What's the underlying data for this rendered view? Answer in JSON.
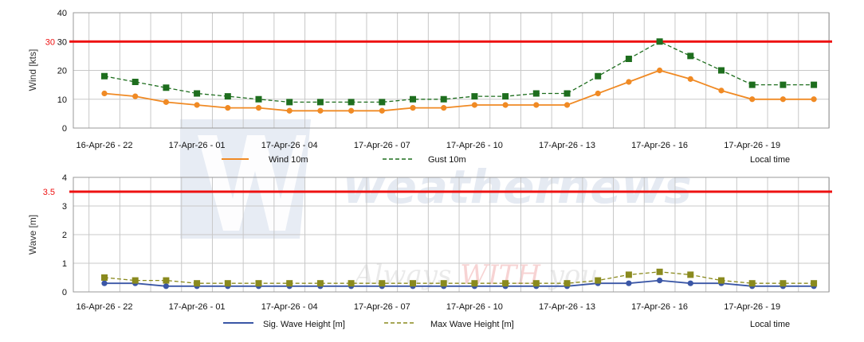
{
  "watermark": {
    "brand": "weathernews",
    "slogan_left": "Always ",
    "slogan_mid": "WITH",
    "slogan_right": " you"
  },
  "colors": {
    "threshold": "#ee1111",
    "wind": "#f08a24",
    "gust": "#1e6e1e",
    "sig_wave": "#3a56a6",
    "max_wave": "#8a8a1e",
    "grid": "#c8c8c8"
  },
  "chart_data": [
    {
      "type": "line",
      "ylabel": "Wind [kts]",
      "ylim": [
        0,
        40
      ],
      "yticks": [
        0,
        10,
        20,
        30,
        40
      ],
      "grid": true,
      "threshold": {
        "value": 30,
        "label": "30"
      },
      "x_labels": [
        "16-Apr-26 - 22",
        "17-Apr-26 - 01",
        "17-Apr-26 - 04",
        "17-Apr-26 - 07",
        "17-Apr-26 - 10",
        "17-Apr-26 - 13",
        "17-Apr-26 - 16",
        "17-Apr-26 - 19"
      ],
      "x_hours": [
        "16-Apr-26 22:00",
        "16-Apr-26 23:00",
        "17-Apr-26 00:00",
        "17-Apr-26 01:00",
        "17-Apr-26 02:00",
        "17-Apr-26 03:00",
        "17-Apr-26 04:00",
        "17-Apr-26 05:00",
        "17-Apr-26 06:00",
        "17-Apr-26 07:00",
        "17-Apr-26 08:00",
        "17-Apr-26 09:00",
        "17-Apr-26 10:00",
        "17-Apr-26 11:00",
        "17-Apr-26 12:00",
        "17-Apr-26 13:00",
        "17-Apr-26 14:00",
        "17-Apr-26 15:00",
        "17-Apr-26 16:00",
        "17-Apr-26 17:00",
        "17-Apr-26 18:00",
        "17-Apr-26 19:00",
        "17-Apr-26 20:00",
        "17-Apr-26 21:00"
      ],
      "legend_note": "Local time",
      "series": [
        {
          "name": "Wind 10m",
          "style": "solid",
          "marker": "circle",
          "color": "#f08a24",
          "values": [
            12,
            11,
            9,
            8,
            7,
            7,
            6,
            6,
            6,
            6,
            7,
            7,
            8,
            8,
            8,
            8,
            12,
            16,
            20,
            17,
            13,
            10,
            10,
            10
          ]
        },
        {
          "name": "Gust 10m",
          "style": "dashed",
          "marker": "square",
          "color": "#1e6e1e",
          "values": [
            18,
            16,
            14,
            12,
            11,
            10,
            9,
            9,
            9,
            9,
            10,
            10,
            11,
            11,
            12,
            12,
            18,
            24,
            30,
            25,
            20,
            15,
            15,
            15
          ]
        }
      ]
    },
    {
      "type": "line",
      "ylabel": "Wave [m]",
      "ylim": [
        0,
        4
      ],
      "yticks": [
        0,
        1,
        2,
        3,
        4
      ],
      "grid": true,
      "threshold": {
        "value": 3.5,
        "label": "3.5"
      },
      "x_labels": [
        "16-Apr-26 - 22",
        "17-Apr-26 - 01",
        "17-Apr-26 - 04",
        "17-Apr-26 - 07",
        "17-Apr-26 - 10",
        "17-Apr-26 - 13",
        "17-Apr-26 - 16",
        "17-Apr-26 - 19"
      ],
      "legend_note": "Local time",
      "series": [
        {
          "name": "Sig. Wave Height [m]",
          "style": "solid",
          "marker": "circle",
          "color": "#3a56a6",
          "values": [
            0.3,
            0.3,
            0.2,
            0.2,
            0.2,
            0.2,
            0.2,
            0.2,
            0.2,
            0.2,
            0.2,
            0.2,
            0.2,
            0.2,
            0.2,
            0.2,
            0.3,
            0.3,
            0.4,
            0.3,
            0.3,
            0.2,
            0.2,
            0.2
          ]
        },
        {
          "name": "Max Wave Height [m]",
          "style": "dashed",
          "marker": "square",
          "color": "#8a8a1e",
          "values": [
            0.5,
            0.4,
            0.4,
            0.3,
            0.3,
            0.3,
            0.3,
            0.3,
            0.3,
            0.3,
            0.3,
            0.3,
            0.3,
            0.3,
            0.3,
            0.3,
            0.4,
            0.6,
            0.7,
            0.6,
            0.4,
            0.3,
            0.3,
            0.3
          ]
        }
      ]
    }
  ]
}
